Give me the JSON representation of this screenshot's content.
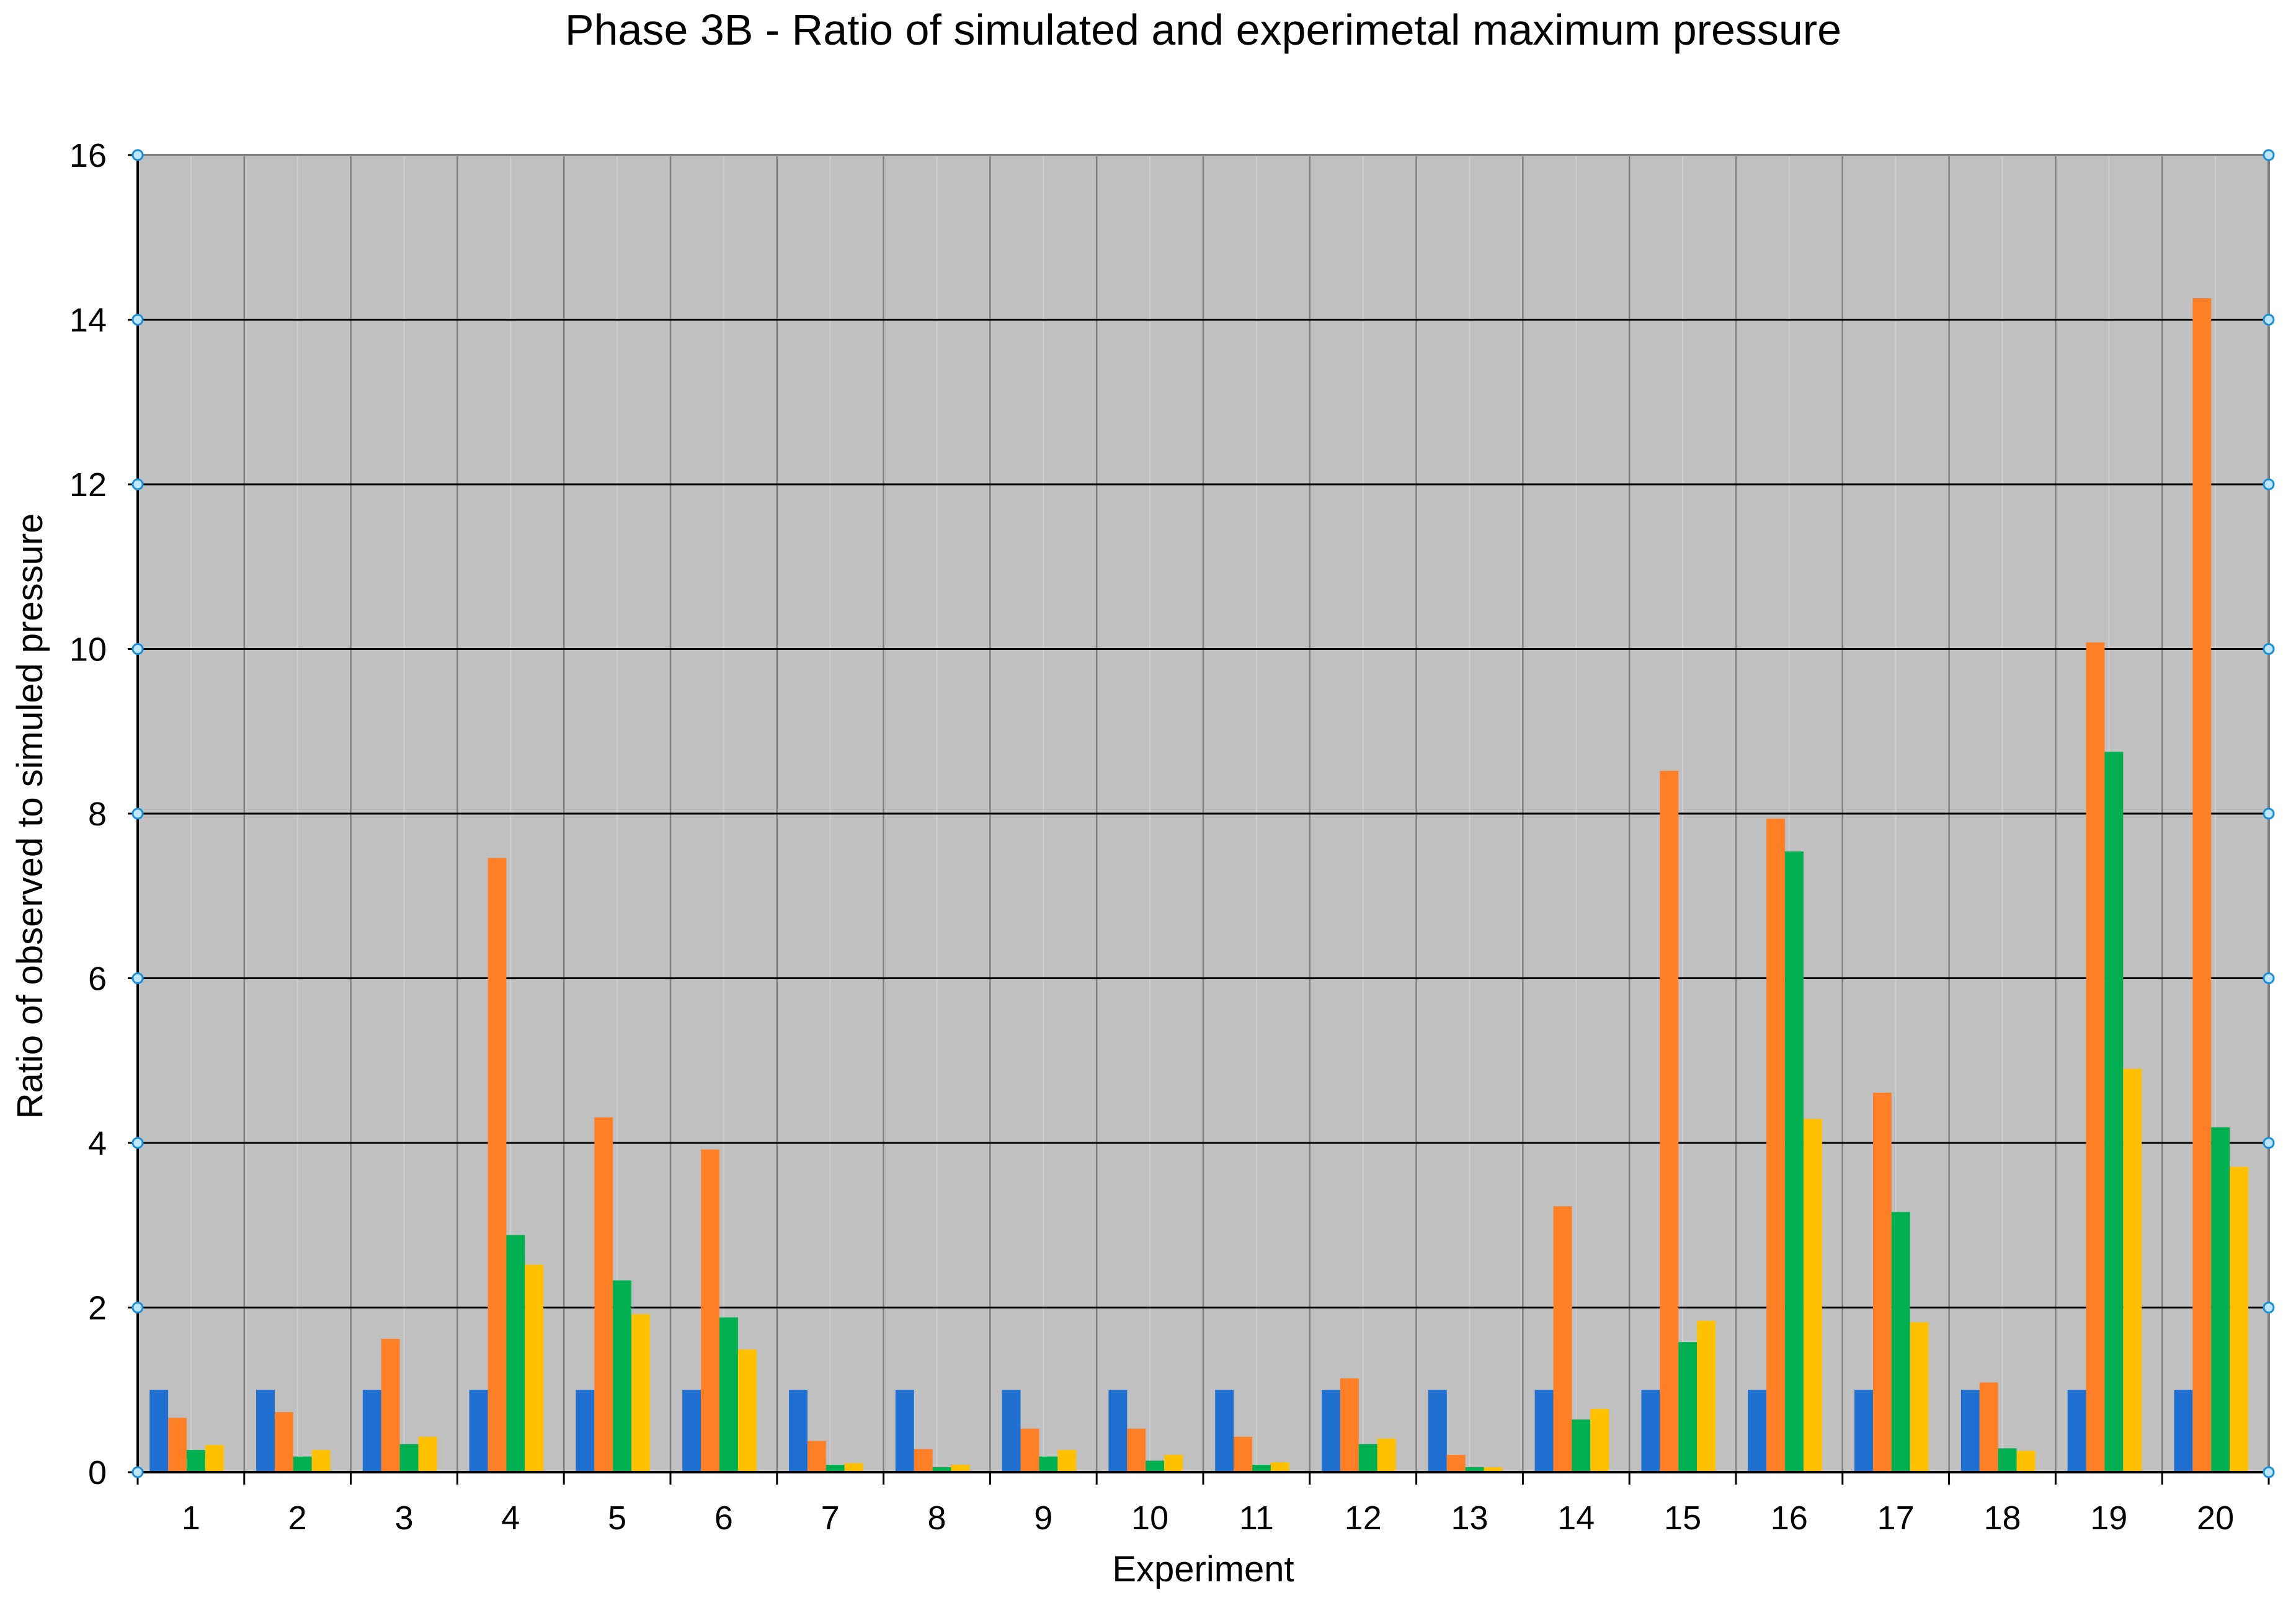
{
  "chart_data": {
    "type": "bar",
    "title": "Phase 3B - Ratio of simulated and experimetal maximum pressure",
    "xlabel": "Experiment",
    "ylabel": "Ratio of observed to simuled pressure",
    "ylim": [
      0,
      16
    ],
    "yticks": [
      "0",
      "2",
      "4",
      "6",
      "8",
      "10",
      "12",
      "14",
      "16"
    ],
    "grid": true,
    "legend": "none",
    "plot_background": "#c0c0c0",
    "categories": [
      "1",
      "2",
      "3",
      "4",
      "5",
      "6",
      "7",
      "8",
      "9",
      "10",
      "11",
      "12",
      "13",
      "14",
      "15",
      "16",
      "17",
      "18",
      "19",
      "20"
    ],
    "series": [
      {
        "color": "#1f6fd0",
        "values": [
          1,
          1,
          1,
          1,
          1,
          1,
          1,
          1,
          1,
          1,
          1,
          1,
          1,
          1,
          1,
          1,
          1,
          1,
          1,
          1
        ]
      },
      {
        "color": "#ff7f27",
        "values": [
          0.66,
          0.73,
          1.62,
          7.46,
          4.31,
          3.92,
          0.38,
          0.28,
          0.53,
          0.53,
          0.43,
          1.14,
          0.21,
          3.23,
          8.52,
          7.94,
          4.61,
          1.09,
          10.08,
          14.26
        ]
      },
      {
        "color": "#00b050",
        "values": [
          0.27,
          0.19,
          0.34,
          2.88,
          2.33,
          1.88,
          0.09,
          0.06,
          0.19,
          0.14,
          0.09,
          0.34,
          0.06,
          0.64,
          1.58,
          7.54,
          3.16,
          0.29,
          8.75,
          4.19
        ]
      },
      {
        "color": "#ffc000",
        "values": [
          0.33,
          0.27,
          0.43,
          2.52,
          1.92,
          1.49,
          0.11,
          0.09,
          0.27,
          0.21,
          0.12,
          0.41,
          0.06,
          0.77,
          1.84,
          4.29,
          1.82,
          0.26,
          4.9,
          3.71
        ]
      }
    ]
  }
}
